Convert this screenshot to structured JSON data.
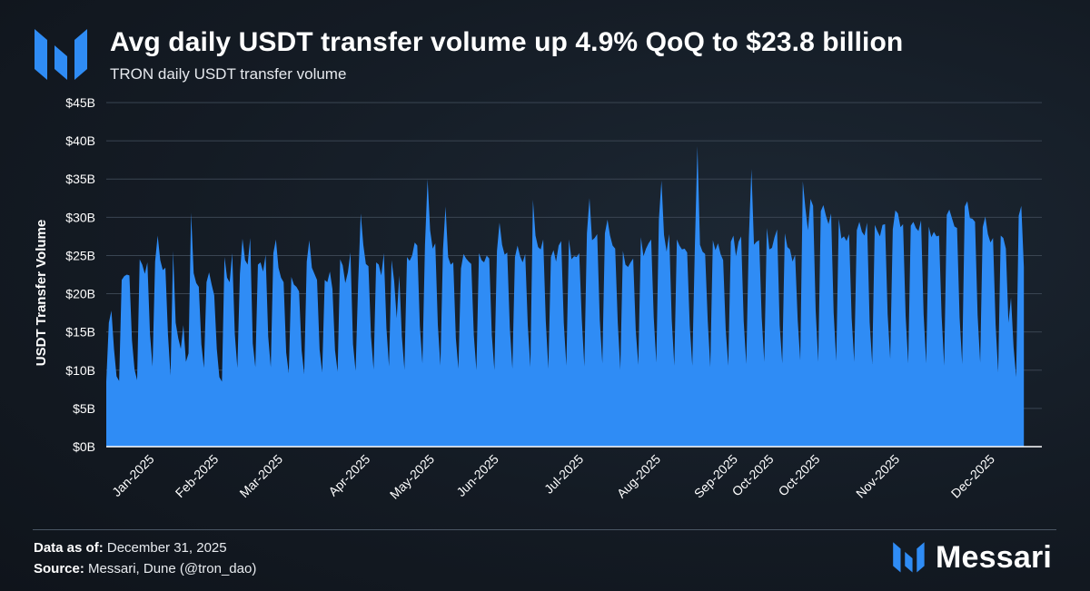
{
  "header": {
    "title": "Avg daily USDT transfer volume up 4.9% QoQ to $23.8 billion",
    "subtitle": "TRON daily USDT transfer volume"
  },
  "footer": {
    "data_as_of_label": "Data as of:",
    "data_as_of_value": "December 31, 2025",
    "source_label": "Source:",
    "source_value": "Messari, Dune (@tron_dao)"
  },
  "brand": {
    "name": "Messari",
    "logo_icon": "messari-logo-icon",
    "accent": "#2f8cf5"
  },
  "chart_data": {
    "type": "area",
    "title": "Avg daily USDT transfer volume up 4.9% QoQ to $23.8 billion",
    "subtitle": "TRON daily USDT transfer volume",
    "xlabel": "",
    "ylabel": "USDT Transfer Volume",
    "ylim": [
      0,
      45
    ],
    "y_unit": "billion USD",
    "yticks": [
      0,
      5,
      10,
      15,
      20,
      25,
      30,
      35,
      40,
      45
    ],
    "ytick_labels": [
      "$0B",
      "$5B",
      "$10B",
      "$15B",
      "$20B",
      "$25B",
      "$30B",
      "$35B",
      "$40B",
      "$45B"
    ],
    "xlim": [
      "2025-01-01",
      "2025-12-31"
    ],
    "xtick_labels": [
      "Jan-2025",
      "Feb-2025",
      "Mar-2025",
      "Apr-2025",
      "May-2025",
      "Jun-2025",
      "Jul-2025",
      "Aug-2025",
      "Sep-2025",
      "Oct-2025",
      "Oct-2025",
      "Nov-2025",
      "Dec-2025"
    ],
    "xtick_dates": [
      "2025-01-19",
      "2025-02-13",
      "2025-03-10",
      "2025-04-13",
      "2025-05-08",
      "2025-06-02",
      "2025-07-05",
      "2025-08-04",
      "2025-09-03",
      "2025-09-17",
      "2025-10-05",
      "2025-11-05",
      "2025-12-12"
    ],
    "grid": true,
    "legend": "none",
    "series": [
      {
        "color": "#2f8cf5",
        "start_date": "2025-01-01",
        "frequency": "daily",
        "values": [
          8.5,
          16.2,
          17.8,
          12.8,
          9.2,
          8.6,
          21.8,
          22.3,
          22.5,
          22.4,
          13.9,
          10.1,
          8.7,
          24.5,
          23.8,
          22.6,
          24.1,
          14.8,
          10.5,
          24.2,
          27.6,
          24.4,
          23.1,
          23.4,
          14.7,
          9.3,
          25.6,
          16.2,
          14.2,
          12.8,
          15.9,
          11.1,
          12.2,
          30.6,
          22.7,
          21.4,
          20.9,
          13.4,
          10.3,
          21.5,
          22.8,
          21.2,
          19.8,
          12.8,
          9.1,
          8.5,
          24.8,
          22.1,
          21.5,
          25.3,
          14.8,
          10.3,
          22.6,
          27.2,
          24.4,
          23.8,
          27.3,
          13.5,
          10.4,
          23.8,
          24.1,
          22.9,
          25.1,
          14.4,
          10.4,
          25.3,
          27.1,
          23.4,
          22.1,
          21.5,
          12.3,
          9.6,
          22.2,
          21.2,
          20.9,
          20.3,
          12.6,
          9.5,
          24.2,
          27.0,
          23.4,
          22.6,
          21.8,
          12.7,
          9.7,
          21.8,
          21.5,
          22.9,
          20.6,
          12.6,
          9.8,
          24.5,
          23.7,
          21.4,
          22.8,
          25.4,
          13.4,
          9.9,
          21.4,
          30.5,
          26.4,
          23.9,
          23.6,
          14.4,
          10.1,
          24.1,
          23.8,
          22.4,
          25.3,
          15.5,
          10.5,
          24.4,
          21.7,
          16.8,
          22.4,
          14.4,
          10.1,
          24.8,
          24.3,
          25.0,
          26.7,
          26.3,
          15.8,
          10.9,
          26.4,
          35.0,
          28.3,
          25.9,
          26.6,
          15.9,
          10.6,
          25.8,
          31.4,
          24.8,
          23.8,
          24.1,
          14.2,
          10.2,
          23.3,
          25.2,
          24.6,
          24.2,
          23.9,
          14.6,
          10.0,
          25.3,
          24.4,
          24.1,
          25.0,
          24.6,
          14.6,
          10.0,
          25.6,
          29.3,
          26.4,
          25.1,
          25.4,
          15.6,
          10.2,
          24.8,
          26.3,
          24.9,
          24.1,
          25.2,
          15.8,
          10.4,
          32.3,
          27.6,
          26.1,
          25.8,
          27.1,
          16.4,
          10.2,
          24.8,
          25.7,
          24.2,
          26.3,
          26.9,
          16.2,
          10.6,
          27.1,
          24.5,
          24.9,
          24.8,
          25.3,
          16.7,
          10.5,
          27.9,
          32.5,
          27.0,
          27.3,
          27.8,
          16.6,
          10.9,
          27.9,
          29.7,
          27.6,
          26.3,
          25.9,
          16.2,
          10.1,
          25.6,
          23.8,
          23.5,
          24.1,
          24.6,
          15.2,
          10.7,
          27.4,
          24.9,
          25.9,
          26.6,
          27.1,
          16.9,
          11.0,
          29.7,
          34.8,
          27.7,
          25.5,
          27.8,
          16.6,
          10.6,
          27.1,
          26.3,
          25.8,
          25.9,
          25.4,
          15.9,
          10.6,
          26.2,
          39.3,
          26.4,
          25.5,
          25.2,
          16.5,
          10.4,
          27.0,
          25.7,
          26.6,
          25.2,
          24.4,
          15.3,
          10.6,
          26.8,
          27.6,
          24.9,
          26.8,
          27.5,
          16.4,
          10.8,
          27.3,
          36.3,
          26.4,
          26.8,
          27.0,
          16.9,
          11.1,
          28.6,
          25.8,
          26.0,
          27.4,
          28.4,
          15.9,
          10.9,
          27.9,
          26.1,
          25.8,
          24.2,
          25.1,
          16.6,
          11.3,
          34.7,
          31.2,
          28.3,
          32.4,
          31.5,
          17.8,
          11.1,
          30.8,
          31.6,
          30.2,
          29.1,
          30.5,
          17.5,
          11.2,
          29.8,
          27.2,
          27.5,
          26.9,
          27.8,
          16.8,
          11.1,
          28.3,
          29.4,
          28.1,
          27.6,
          29.3,
          16.3,
          10.8,
          29.0,
          28.2,
          27.5,
          29.0,
          29.1,
          17.3,
          11.5,
          28.4,
          30.9,
          30.5,
          28.7,
          29.1,
          17.1,
          10.9,
          28.9,
          29.4,
          28.6,
          28.2,
          29.6,
          17.3,
          10.9,
          28.8,
          27.4,
          28.1,
          27.5,
          27.6,
          17.1,
          10.6,
          30.3,
          31.0,
          29.9,
          28.8,
          28.6,
          16.9,
          10.8,
          31.4,
          32.1,
          29.9,
          29.8,
          29.4,
          17.2,
          11.0,
          28.7,
          30.1,
          27.8,
          26.7,
          27.3,
          16.0,
          9.7,
          27.6,
          27.3,
          25.9,
          16.2,
          19.5,
          13.0,
          9.1,
          30.2,
          31.5,
          23.5
        ]
      }
    ]
  }
}
